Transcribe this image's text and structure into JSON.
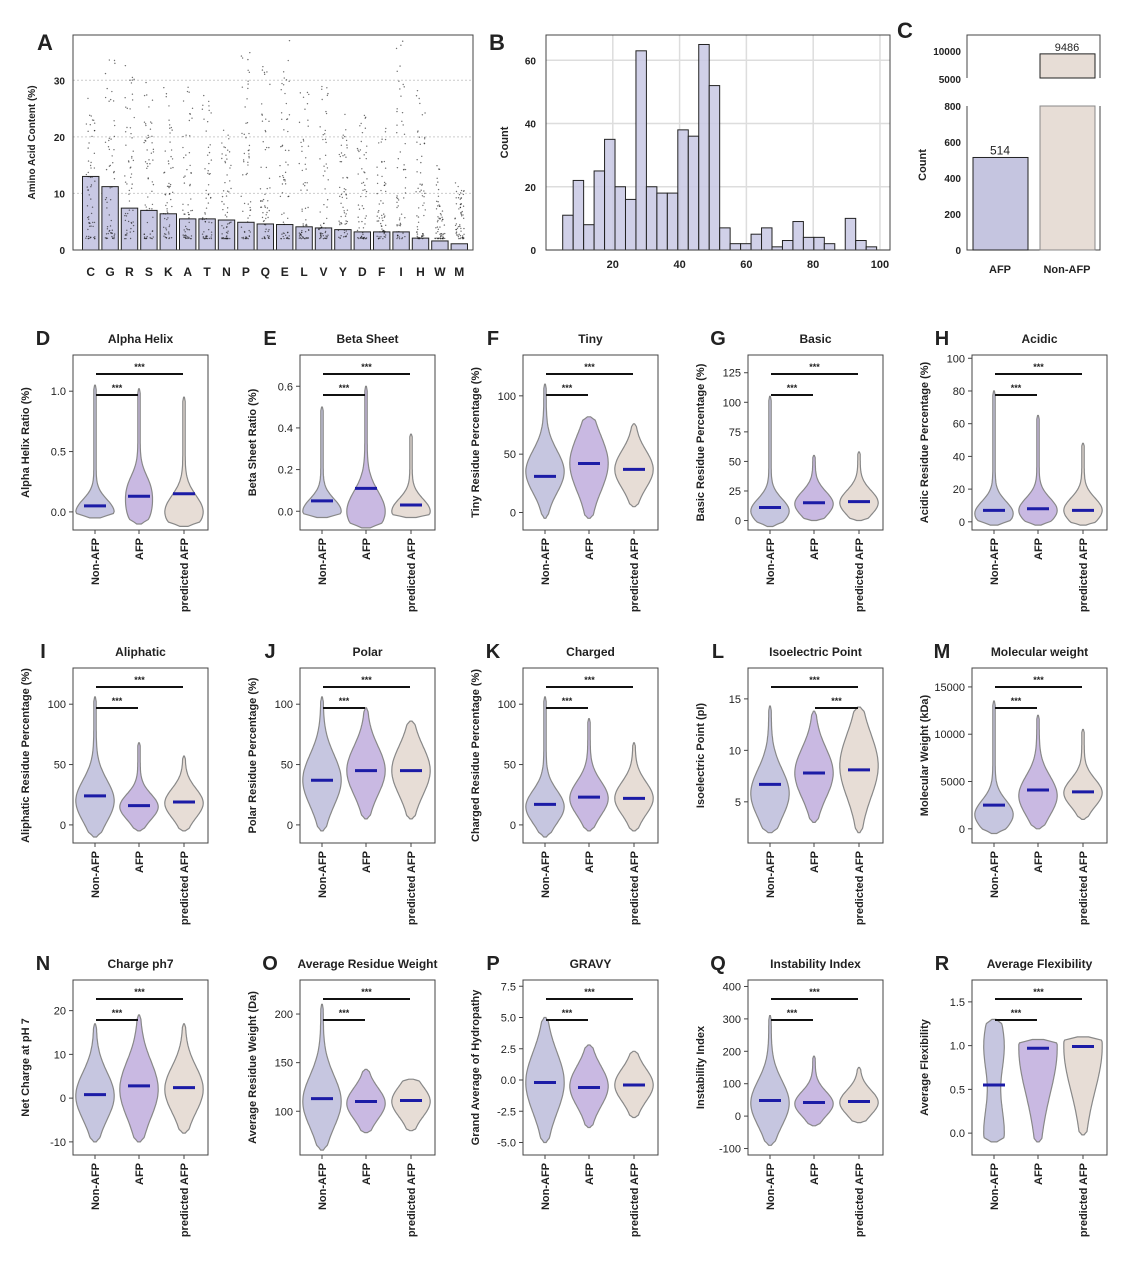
{
  "colors": {
    "non_afp": "#c6c6e0",
    "afp": "#c9b9e2",
    "predicted_afp": "#e7ddd6",
    "bar": "#c8c8e4",
    "mean_line": "#1c1ca6",
    "outline": "#888888"
  },
  "groups": [
    "Non-AFP",
    "AFP",
    "predicted AFP"
  ],
  "chart_data": [
    {
      "panel": "A",
      "type": "bar",
      "ylabel": "Amino Acid Content (%)",
      "ylim": [
        0,
        38
      ],
      "yticks": [
        0,
        10,
        20,
        30
      ],
      "grid": true,
      "categories": [
        "C",
        "G",
        "R",
        "S",
        "K",
        "A",
        "T",
        "N",
        "P",
        "Q",
        "E",
        "L",
        "V",
        "Y",
        "D",
        "F",
        "I",
        "H",
        "W",
        "M"
      ],
      "values": [
        13.0,
        11.2,
        7.4,
        7.0,
        6.4,
        5.5,
        5.5,
        5.3,
        4.9,
        4.6,
        4.5,
        4.1,
        3.9,
        3.6,
        3.2,
        3.2,
        3.2,
        2.1,
        1.6,
        1.1
      ],
      "max_points": [
        27,
        34,
        33,
        30,
        29,
        29,
        29,
        22,
        38,
        33,
        37,
        29,
        30,
        25,
        24,
        22,
        38,
        29,
        15,
        12
      ]
    },
    {
      "panel": "B",
      "type": "bar",
      "ylabel": "Count",
      "xlim": [
        0,
        103
      ],
      "ylim": [
        0,
        68
      ],
      "xticks": [
        20,
        40,
        60,
        80,
        100
      ],
      "yticks": [
        0,
        20,
        40,
        60
      ],
      "grid": true,
      "bin_start": 5,
      "bin_end": 99,
      "counts": [
        11,
        22,
        8,
        25,
        35,
        20,
        16,
        63,
        20,
        18,
        18,
        38,
        36,
        65,
        52,
        7,
        2,
        2,
        5,
        7,
        1,
        3,
        9,
        4,
        4,
        2,
        0,
        10,
        3,
        1
      ]
    },
    {
      "panel": "C",
      "type": "bar",
      "ylabel": "Count",
      "broken_axis": true,
      "categories": [
        "AFP",
        "Non-AFP"
      ],
      "values": [
        514,
        9486
      ],
      "data_labels": [
        "514",
        "9486"
      ],
      "yticks_lower": [
        0,
        200,
        400,
        600,
        800
      ],
      "yticks_upper": [
        5000,
        10000
      ]
    },
    {
      "panel": "D",
      "type": "violin",
      "title": "Alpha Helix",
      "ylabel": "Alpha Helix Ratio (%)",
      "ylim": [
        -0.15,
        1.3
      ],
      "yticks": [
        "0.0",
        "0.5",
        "1.0"
      ],
      "violins": [
        {
          "mean": 0.05,
          "min": -0.05,
          "max": 1.05,
          "peaks": [
            0.0
          ]
        },
        {
          "mean": 0.13,
          "min": -0.1,
          "max": 1.02,
          "peaks": [
            0.0,
            0.2
          ]
        },
        {
          "mean": 0.15,
          "min": -0.12,
          "max": 0.95,
          "peaks": [
            0.0
          ]
        }
      ],
      "significance": [
        {
          "pair": [
            0,
            1
          ],
          "label": "***"
        },
        {
          "pair": [
            0,
            2
          ],
          "label": "***"
        }
      ]
    },
    {
      "panel": "E",
      "type": "violin",
      "title": "Beta Sheet",
      "ylabel": "Beta Sheet Ratio (%)",
      "ylim": [
        -0.09,
        0.75
      ],
      "yticks": [
        "0.0",
        "0.2",
        "0.4",
        "0.6"
      ],
      "violins": [
        {
          "mean": 0.05,
          "min": -0.03,
          "max": 0.5,
          "peaks": [
            0.0
          ]
        },
        {
          "mean": 0.11,
          "min": -0.08,
          "max": 0.6,
          "peaks": [
            0.0
          ]
        },
        {
          "mean": 0.03,
          "min": -0.03,
          "max": 0.37,
          "peaks": [
            0.0
          ]
        }
      ],
      "significance": [
        {
          "pair": [
            0,
            1
          ],
          "label": "***"
        },
        {
          "pair": [
            0,
            2
          ],
          "label": "***"
        }
      ]
    },
    {
      "panel": "F",
      "type": "violin",
      "title": "Tiny",
      "ylabel": "Tiny Residue Percentage (%)",
      "ylim": [
        -15,
        135
      ],
      "yticks": [
        "0",
        "50",
        "100"
      ],
      "violins": [
        {
          "mean": 31,
          "min": -5,
          "max": 110,
          "peaks": [
            35
          ]
        },
        {
          "mean": 42,
          "min": -5,
          "max": 82,
          "peaks": [
            42
          ]
        },
        {
          "mean": 37,
          "min": 5,
          "max": 76,
          "peaks": [
            37
          ]
        }
      ],
      "significance": [
        {
          "pair": [
            0,
            1
          ],
          "label": "***"
        },
        {
          "pair": [
            0,
            2
          ],
          "label": "***"
        }
      ]
    },
    {
      "panel": "G",
      "type": "violin",
      "title": "Basic",
      "ylabel": "Basic Residue Percentage (%)",
      "ylim": [
        -8,
        140
      ],
      "yticks": [
        "0",
        "25",
        "50",
        "75",
        "100",
        "125"
      ],
      "violins": [
        {
          "mean": 11,
          "min": -5,
          "max": 105,
          "peaks": [
            8
          ]
        },
        {
          "mean": 15,
          "min": 0,
          "max": 55,
          "peaks": [
            14
          ]
        },
        {
          "mean": 16,
          "min": 0,
          "max": 58,
          "peaks": [
            15
          ]
        }
      ],
      "significance": [
        {
          "pair": [
            0,
            1
          ],
          "label": "***"
        },
        {
          "pair": [
            0,
            2
          ],
          "label": "***"
        }
      ]
    },
    {
      "panel": "H",
      "type": "violin",
      "title": "Acidic",
      "ylabel": "Acidic Residue Percentage (%)",
      "ylim": [
        -5,
        102
      ],
      "yticks": [
        "0",
        "20",
        "40",
        "60",
        "80",
        "100"
      ],
      "violins": [
        {
          "mean": 7,
          "min": -2,
          "max": 80,
          "peaks": [
            5
          ]
        },
        {
          "mean": 8,
          "min": -2,
          "max": 65,
          "peaks": [
            7
          ]
        },
        {
          "mean": 7,
          "min": -2,
          "max": 48,
          "peaks": [
            7
          ]
        }
      ],
      "significance": [
        {
          "pair": [
            0,
            1
          ],
          "label": "***"
        },
        {
          "pair": [
            0,
            2
          ],
          "label": "***"
        }
      ]
    },
    {
      "panel": "I",
      "type": "violin",
      "title": "Aliphatic",
      "ylabel": "Aliphatic Residue Percentage (%)",
      "ylim": [
        -15,
        130
      ],
      "yticks": [
        "0",
        "50",
        "100"
      ],
      "violins": [
        {
          "mean": 24,
          "min": -10,
          "max": 106,
          "peaks": [
            20
          ]
        },
        {
          "mean": 16,
          "min": -5,
          "max": 68,
          "peaks": [
            15
          ]
        },
        {
          "mean": 19,
          "min": -5,
          "max": 57,
          "peaks": [
            18
          ]
        }
      ],
      "significance": [
        {
          "pair": [
            0,
            1
          ],
          "label": "***"
        },
        {
          "pair": [
            0,
            2
          ],
          "label": "***"
        }
      ]
    },
    {
      "panel": "J",
      "type": "violin",
      "title": "Polar",
      "ylabel": "Polar Residue Percentage (%)",
      "ylim": [
        -15,
        130
      ],
      "yticks": [
        "0",
        "50",
        "100"
      ],
      "violins": [
        {
          "mean": 37,
          "min": -5,
          "max": 106,
          "peaks": [
            37
          ]
        },
        {
          "mean": 45,
          "min": 5,
          "max": 97,
          "peaks": [
            45
          ]
        },
        {
          "mean": 45,
          "min": 5,
          "max": 86,
          "peaks": [
            45
          ]
        }
      ],
      "significance": [
        {
          "pair": [
            0,
            1
          ],
          "label": "***"
        },
        {
          "pair": [
            0,
            2
          ],
          "label": "***"
        }
      ]
    },
    {
      "panel": "K",
      "type": "violin",
      "title": "Charged",
      "ylabel": "Charged Residue Percentage (%)",
      "ylim": [
        -15,
        130
      ],
      "yticks": [
        "0",
        "50",
        "100"
      ],
      "violins": [
        {
          "mean": 17,
          "min": -10,
          "max": 106,
          "peaks": [
            15
          ]
        },
        {
          "mean": 23,
          "min": -5,
          "max": 88,
          "peaks": [
            22
          ]
        },
        {
          "mean": 22,
          "min": -5,
          "max": 68,
          "peaks": [
            22
          ]
        }
      ],
      "significance": [
        {
          "pair": [
            0,
            1
          ],
          "label": "***"
        },
        {
          "pair": [
            0,
            2
          ],
          "label": "***"
        }
      ]
    },
    {
      "panel": "L",
      "type": "violin",
      "title": "Isoelectric Point",
      "ylabel": "Isoelectric Point (pI)",
      "ylim": [
        1,
        18
      ],
      "yticks": [
        "5",
        "10",
        "15"
      ],
      "violins": [
        {
          "mean": 6.7,
          "min": 2,
          "max": 14.3,
          "peaks": [
            5.8
          ]
        },
        {
          "mean": 7.8,
          "min": 3,
          "max": 13.8,
          "peaks": [
            7.8
          ]
        },
        {
          "mean": 8.1,
          "min": 2,
          "max": 14.2,
          "peaks": [
            8.5
          ]
        }
      ],
      "significance": [
        {
          "pair": [
            1,
            2
          ],
          "label": "***"
        },
        {
          "pair": [
            0,
            2
          ],
          "label": "***"
        }
      ]
    },
    {
      "panel": "M",
      "type": "violin",
      "title": "Molecular weight",
      "ylabel": "Molecular Weight (kDa)",
      "ylim": [
        -1500,
        17000
      ],
      "yticks": [
        "0",
        "5000",
        "10000",
        "15000"
      ],
      "violins": [
        {
          "mean": 2500,
          "min": -500,
          "max": 13500,
          "peaks": [
            1500
          ]
        },
        {
          "mean": 4100,
          "min": 0,
          "max": 12000,
          "peaks": [
            3500
          ]
        },
        {
          "mean": 3900,
          "min": 1000,
          "max": 10500,
          "peaks": [
            3800
          ]
        }
      ],
      "significance": [
        {
          "pair": [
            0,
            1
          ],
          "label": "***"
        },
        {
          "pair": [
            0,
            2
          ],
          "label": "***"
        }
      ]
    },
    {
      "panel": "N",
      "type": "violin",
      "title": "Charge ph7",
      "ylabel": "Net Charge at pH 7",
      "ylim": [
        -13,
        27
      ],
      "yticks": [
        "-10",
        "0",
        "10",
        "20"
      ],
      "violins": [
        {
          "mean": 0.8,
          "min": -10,
          "max": 17,
          "peaks": [
            0.5
          ]
        },
        {
          "mean": 2.8,
          "min": -10,
          "max": 19,
          "peaks": [
            2
          ]
        },
        {
          "mean": 2.4,
          "min": -8,
          "max": 17,
          "peaks": [
            2
          ]
        }
      ],
      "significance": [
        {
          "pair": [
            0,
            1
          ],
          "label": "***"
        },
        {
          "pair": [
            0,
            2
          ],
          "label": "***"
        }
      ]
    },
    {
      "panel": "O",
      "type": "violin",
      "title": "Average Residue Weight",
      "ylabel": "Average Residue Weight (Da)",
      "ylim": [
        55,
        235
      ],
      "yticks": [
        "100",
        "150",
        "200"
      ],
      "violins": [
        {
          "mean": 113,
          "min": 60,
          "max": 210,
          "peaks": [
            110
          ]
        },
        {
          "mean": 110,
          "min": 78,
          "max": 143,
          "peaks": [
            108
          ]
        },
        {
          "mean": 111,
          "min": 80,
          "max": 133,
          "peaks": [
            110
          ]
        }
      ],
      "significance": [
        {
          "pair": [
            0,
            1
          ],
          "label": "***"
        },
        {
          "pair": [
            0,
            2
          ],
          "label": "***"
        }
      ]
    },
    {
      "panel": "P",
      "type": "violin",
      "title": "GRAVY",
      "ylabel": "Grand Average of Hydropathy",
      "ylim": [
        -6,
        8
      ],
      "yticks": [
        "-5.0",
        "-2.5",
        "0.0",
        "2.5",
        "5.0",
        "7.5"
      ],
      "violins": [
        {
          "mean": -0.2,
          "min": -5,
          "max": 5,
          "peaks": [
            -0.2
          ]
        },
        {
          "mean": -0.6,
          "min": -3.8,
          "max": 2.8,
          "peaks": [
            -0.5
          ]
        },
        {
          "mean": -0.4,
          "min": -3,
          "max": 2.3,
          "peaks": [
            -0.4
          ]
        }
      ],
      "significance": [
        {
          "pair": [
            0,
            1
          ],
          "label": "***"
        },
        {
          "pair": [
            0,
            2
          ],
          "label": "***"
        }
      ]
    },
    {
      "panel": "Q",
      "type": "violin",
      "title": "Instability Index",
      "ylabel": "Instability Index",
      "ylim": [
        -120,
        420
      ],
      "yticks": [
        "-100",
        "0",
        "100",
        "200",
        "300",
        "400"
      ],
      "violins": [
        {
          "mean": 48,
          "min": -90,
          "max": 310,
          "peaks": [
            40
          ]
        },
        {
          "mean": 42,
          "min": -30,
          "max": 185,
          "peaks": [
            38
          ]
        },
        {
          "mean": 45,
          "min": -20,
          "max": 150,
          "peaks": [
            42
          ]
        }
      ],
      "significance": [
        {
          "pair": [
            0,
            1
          ],
          "label": "***"
        },
        {
          "pair": [
            0,
            2
          ],
          "label": "***"
        }
      ]
    },
    {
      "panel": "R",
      "type": "violin",
      "title": "Average Flexibility",
      "ylabel": "Average Flexibility",
      "ylim": [
        -0.25,
        1.75
      ],
      "yticks": [
        "0.0",
        "0.5",
        "1.0",
        "1.5"
      ],
      "violins": [
        {
          "mean": 0.55,
          "min": -0.1,
          "max": 1.3,
          "peaks": [
            0.0,
            1.0
          ]
        },
        {
          "mean": 0.97,
          "min": -0.1,
          "max": 1.07,
          "peaks": [
            0.98
          ]
        },
        {
          "mean": 0.99,
          "min": -0.02,
          "max": 1.1,
          "peaks": [
            0.99
          ]
        }
      ],
      "significance": [
        {
          "pair": [
            0,
            1
          ],
          "label": "***"
        },
        {
          "pair": [
            0,
            2
          ],
          "label": "***"
        }
      ]
    }
  ]
}
